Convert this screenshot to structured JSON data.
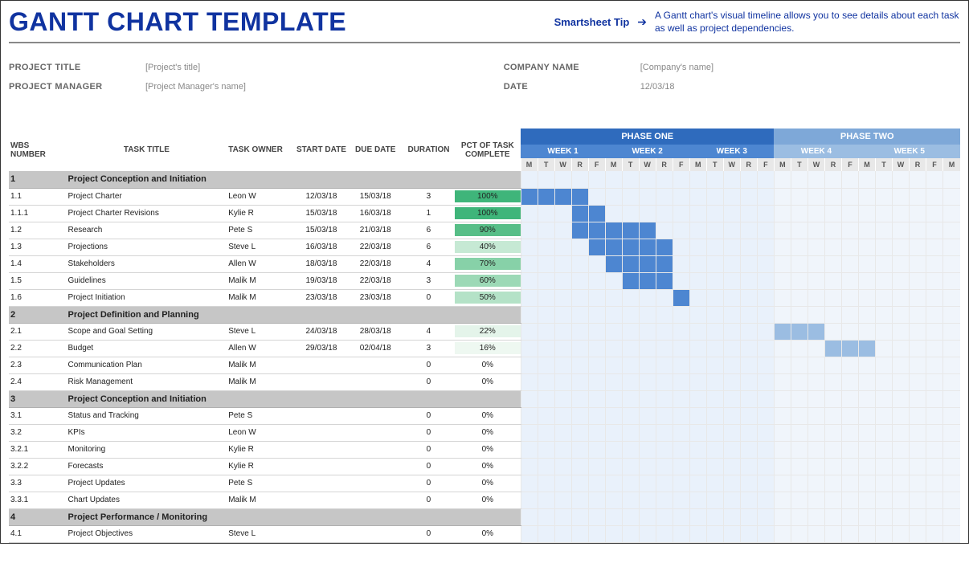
{
  "header": {
    "title": "GANTT CHART TEMPLATE",
    "tip_label": "Smartsheet Tip",
    "tip_text": "A Gantt chart's visual timeline allows you to see details about each task as well as project dependencies."
  },
  "meta": {
    "left": [
      {
        "label": "PROJECT TITLE",
        "value": "[Project's title]"
      },
      {
        "label": "PROJECT MANAGER",
        "value": "[Project Manager's name]"
      }
    ],
    "right": [
      {
        "label": "COMPANY NAME",
        "value": "[Company's name]"
      },
      {
        "label": "DATE",
        "value": "12/03/18"
      }
    ]
  },
  "columns": {
    "wbs": "WBS NUMBER",
    "task": "TASK TITLE",
    "owner": "TASK OWNER",
    "start": "START DATE",
    "due": "DUE DATE",
    "dur": "DURATION",
    "pct": "PCT OF TASK COMPLETE"
  },
  "timeline": {
    "phases": [
      {
        "label": "PHASE ONE",
        "weeks": 3,
        "bg": "#2f6bbd",
        "week_bg": "#4d86d1",
        "day_fill": "#4d86d1",
        "day_empty": "#e9f1fb"
      },
      {
        "label": "PHASE TWO",
        "weeks": 2,
        "bg": "#7ea8d8",
        "week_bg": "#9bbde2",
        "day_fill": "#9bbde2",
        "day_empty": "#f0f5fb"
      }
    ],
    "week_labels": [
      "WEEK 1",
      "WEEK 2",
      "WEEK 3",
      "WEEK 4",
      "WEEK 5"
    ],
    "day_labels": [
      "M",
      "T",
      "W",
      "R",
      "F"
    ],
    "extra_day": "M",
    "total_days": 26
  },
  "colors": {
    "pct_100": "#3fb57a",
    "pct_90": "#57be87",
    "pct_70": "#87d1a8",
    "pct_60": "#9cd9b6",
    "pct_50": "#b4e2c7",
    "pct_40": "#c6e9d4",
    "pct_22": "#e4f4ea",
    "pct_16": "#eef8f1",
    "pct_0": "#ffffff"
  },
  "sections": [
    {
      "wbs": "1",
      "title": "Project Conception and Initiation",
      "rows": [
        {
          "wbs": "1.1",
          "task": "Project Charter",
          "owner": "Leon W",
          "start": "12/03/18",
          "due": "15/03/18",
          "dur": "3",
          "pct": "100%",
          "pct_bg": "pct_100",
          "bar_start": 0,
          "bar_len": 4
        },
        {
          "wbs": "1.1.1",
          "task": "Project Charter Revisions",
          "owner": "Kylie R",
          "start": "15/03/18",
          "due": "16/03/18",
          "dur": "1",
          "pct": "100%",
          "pct_bg": "pct_100",
          "bar_start": 3,
          "bar_len": 2
        },
        {
          "wbs": "1.2",
          "task": "Research",
          "owner": "Pete S",
          "start": "15/03/18",
          "due": "21/03/18",
          "dur": "6",
          "pct": "90%",
          "pct_bg": "pct_90",
          "bar_start": 3,
          "bar_len": 5
        },
        {
          "wbs": "1.3",
          "task": "Projections",
          "owner": "Steve L",
          "start": "16/03/18",
          "due": "22/03/18",
          "dur": "6",
          "pct": "40%",
          "pct_bg": "pct_40",
          "bar_start": 4,
          "bar_len": 5
        },
        {
          "wbs": "1.4",
          "task": "Stakeholders",
          "owner": "Allen W",
          "start": "18/03/18",
          "due": "22/03/18",
          "dur": "4",
          "pct": "70%",
          "pct_bg": "pct_70",
          "bar_start": 5,
          "bar_len": 4
        },
        {
          "wbs": "1.5",
          "task": "Guidelines",
          "owner": "Malik M",
          "start": "19/03/18",
          "due": "22/03/18",
          "dur": "3",
          "pct": "60%",
          "pct_bg": "pct_60",
          "bar_start": 6,
          "bar_len": 3
        },
        {
          "wbs": "1.6",
          "task": "Project Initiation",
          "owner": "Malik M",
          "start": "23/03/18",
          "due": "23/03/18",
          "dur": "0",
          "pct": "50%",
          "pct_bg": "pct_50",
          "bar_start": 9,
          "bar_len": 1
        }
      ]
    },
    {
      "wbs": "2",
      "title": "Project Definition and Planning",
      "rows": [
        {
          "wbs": "2.1",
          "task": "Scope and Goal Setting",
          "owner": "Steve L",
          "start": "24/03/18",
          "due": "28/03/18",
          "dur": "4",
          "pct": "22%",
          "pct_bg": "pct_22",
          "bar_start": 15,
          "bar_len": 3,
          "phase": 1
        },
        {
          "wbs": "2.2",
          "task": "Budget",
          "owner": "Allen W",
          "start": "29/03/18",
          "due": "02/04/18",
          "dur": "3",
          "pct": "16%",
          "pct_bg": "pct_16",
          "bar_start": 18,
          "bar_len": 3,
          "phase": 1
        },
        {
          "wbs": "2.3",
          "task": "Communication Plan",
          "owner": "Malik M",
          "start": "",
          "due": "",
          "dur": "0",
          "pct": "0%",
          "pct_bg": "pct_0"
        },
        {
          "wbs": "2.4",
          "task": "Risk Management",
          "owner": "Malik M",
          "start": "",
          "due": "",
          "dur": "0",
          "pct": "0%",
          "pct_bg": "pct_0"
        }
      ]
    },
    {
      "wbs": "3",
      "title": "Project Conception and Initiation",
      "rows": [
        {
          "wbs": "3.1",
          "task": "Status and Tracking",
          "owner": "Pete S",
          "start": "",
          "due": "",
          "dur": "0",
          "pct": "0%",
          "pct_bg": "pct_0"
        },
        {
          "wbs": "3.2",
          "task": "KPIs",
          "owner": "Leon W",
          "start": "",
          "due": "",
          "dur": "0",
          "pct": "0%",
          "pct_bg": "pct_0"
        },
        {
          "wbs": "3.2.1",
          "task": "Monitoring",
          "owner": "Kylie R",
          "start": "",
          "due": "",
          "dur": "0",
          "pct": "0%",
          "pct_bg": "pct_0"
        },
        {
          "wbs": "3.2.2",
          "task": "Forecasts",
          "owner": "Kylie R",
          "start": "",
          "due": "",
          "dur": "0",
          "pct": "0%",
          "pct_bg": "pct_0"
        },
        {
          "wbs": "3.3",
          "task": "Project Updates",
          "owner": "Pete S",
          "start": "",
          "due": "",
          "dur": "0",
          "pct": "0%",
          "pct_bg": "pct_0"
        },
        {
          "wbs": "3.3.1",
          "task": "Chart Updates",
          "owner": "Malik M",
          "start": "",
          "due": "",
          "dur": "0",
          "pct": "0%",
          "pct_bg": "pct_0"
        }
      ]
    },
    {
      "wbs": "4",
      "title": "Project Performance / Monitoring",
      "rows": [
        {
          "wbs": "4.1",
          "task": "Project Objectives",
          "owner": "Steve L",
          "start": "",
          "due": "",
          "dur": "0",
          "pct": "0%",
          "pct_bg": "pct_0"
        }
      ]
    }
  ]
}
